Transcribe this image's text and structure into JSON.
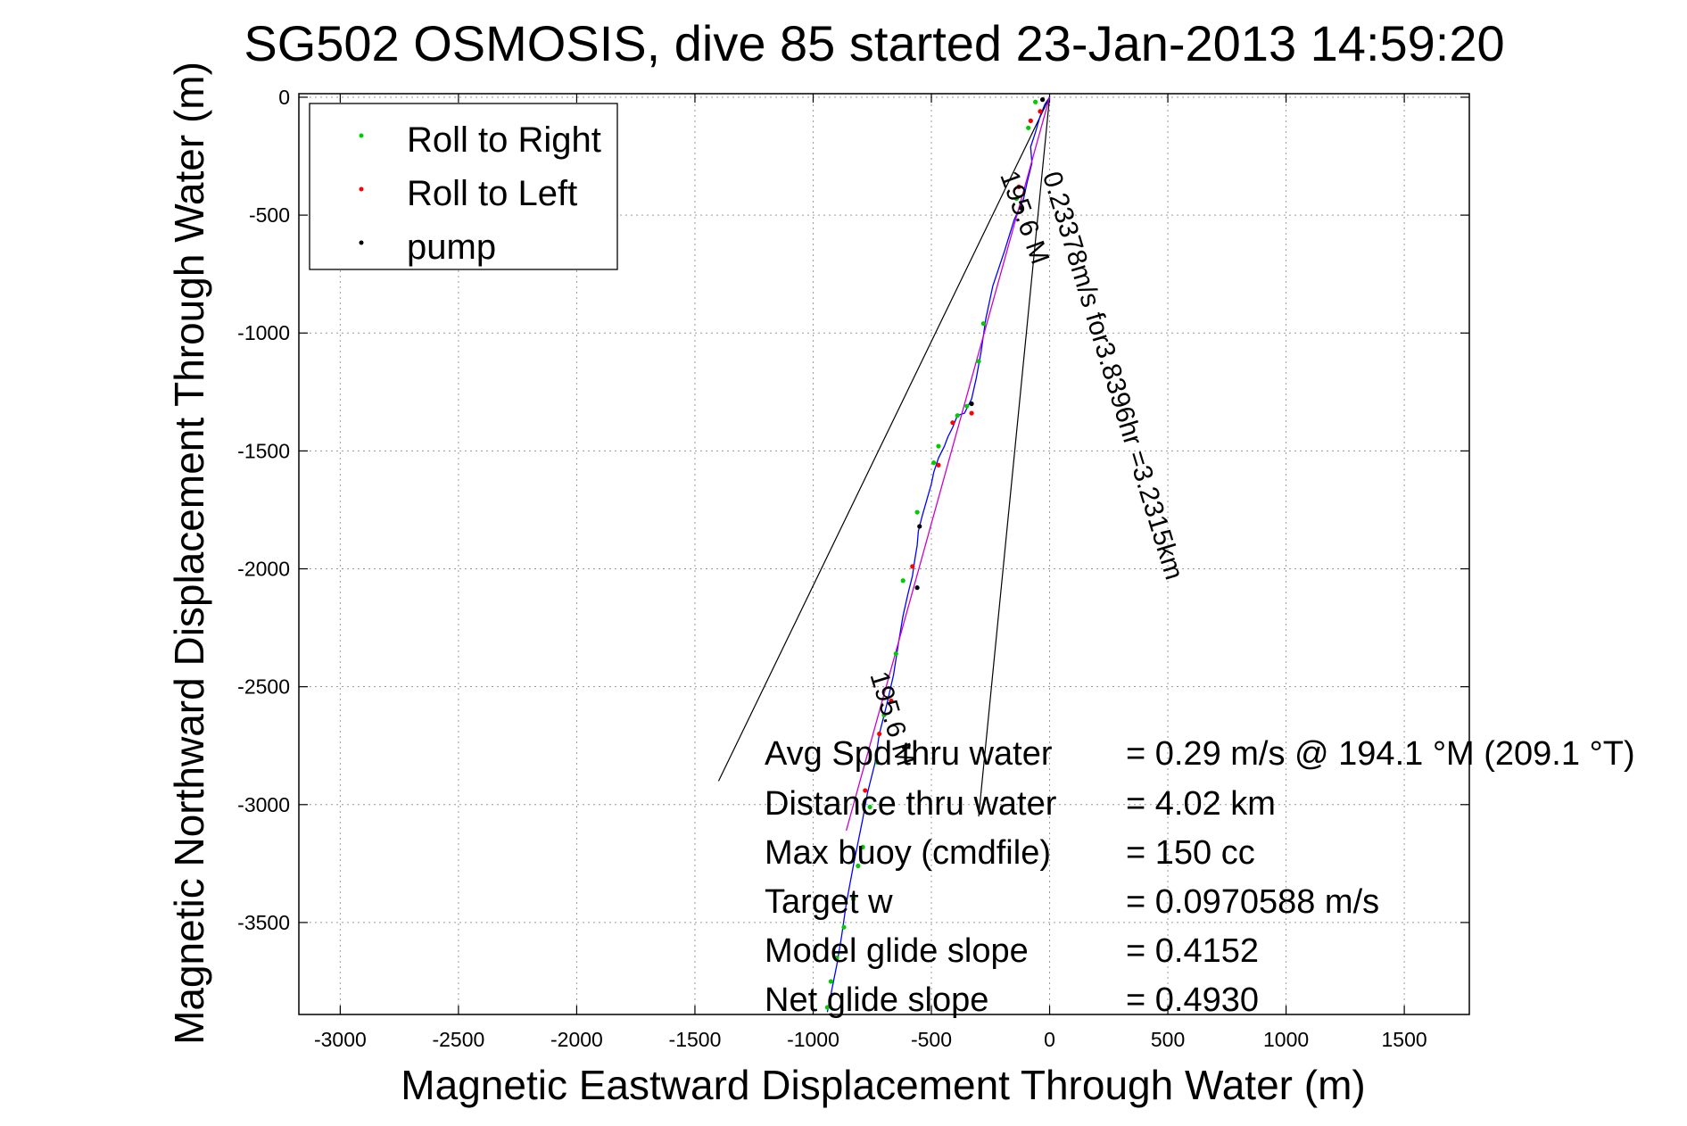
{
  "chart_data": {
    "type": "line",
    "title": "SG502 OSMOSIS, dive 85 started 23-Jan-2013 14:59:20",
    "xlabel": "Magnetic Eastward Displacement Through Water (m)",
    "ylabel": "Magnetic Northward Displacement Through Water (m)",
    "xlim": [
      -3175,
      1775
    ],
    "ylim": [
      -3890,
      15
    ],
    "xticks": [
      -3000,
      -2500,
      -2000,
      -1500,
      -1000,
      -500,
      0,
      500,
      1000,
      1500
    ],
    "yticks": [
      0,
      -500,
      -1000,
      -1500,
      -2000,
      -2500,
      -3000,
      -3500
    ],
    "grid": true,
    "legend_position": "top-left",
    "legend": [
      {
        "label": "Roll to Right",
        "color": "#00cc00"
      },
      {
        "label": "Roll to Left",
        "color": "#ff0000"
      },
      {
        "label": "pump",
        "color": "#000000"
      }
    ],
    "series": [
      {
        "color": "#0000ff",
        "x": [
          0,
          -20,
          -40,
          -60,
          -80,
          -75,
          -95,
          -110,
          -150,
          -190,
          -240,
          -270,
          -290,
          -310,
          -330,
          -360,
          -390,
          -410,
          -430,
          -445,
          -470,
          -490,
          -500,
          -520,
          -540,
          -555,
          -560,
          -570,
          -580,
          -600,
          -620,
          -640,
          -660,
          -690,
          -720,
          -740,
          -770,
          -790,
          -810,
          -830,
          -860,
          -880,
          -900,
          -920,
          -940
        ],
        "y": [
          0,
          -30,
          -80,
          -150,
          -210,
          -280,
          -360,
          -430,
          -520,
          -650,
          -800,
          -940,
          -1080,
          -1190,
          -1280,
          -1340,
          -1350,
          -1400,
          -1440,
          -1480,
          -1530,
          -1590,
          -1640,
          -1710,
          -1780,
          -1840,
          -1900,
          -1960,
          -2030,
          -2110,
          -2200,
          -2320,
          -2450,
          -2580,
          -2700,
          -2830,
          -2950,
          -3060,
          -3160,
          -3260,
          -3420,
          -3560,
          -3680,
          -3780,
          -3880
        ]
      },
      {
        "color": "#cc00cc",
        "x": [
          0,
          -860
        ],
        "y": [
          0,
          -3110
        ]
      }
    ],
    "roll_right_points": {
      "x": [
        -60,
        -90,
        -140,
        -280,
        -300,
        -350,
        -390,
        -470,
        -490,
        -560,
        -620,
        -650,
        -700,
        -730,
        -760,
        -790,
        -810,
        -830,
        -870,
        -900,
        -925,
        -940
      ],
      "y": [
        -20,
        -130,
        -430,
        -960,
        -1120,
        -1310,
        -1350,
        -1480,
        -1550,
        -1760,
        -2050,
        -2360,
        -2620,
        -2820,
        -3010,
        -3180,
        -3260,
        -3400,
        -3520,
        -3650,
        -3750,
        -3860
      ]
    },
    "roll_left_points": {
      "x": [
        -40,
        -80,
        -130,
        -330,
        -410,
        -470,
        -580,
        -670,
        -720,
        -780
      ],
      "y": [
        -60,
        -100,
        -380,
        -1340,
        -1380,
        -1560,
        -1990,
        -2560,
        -2700,
        -2940
      ]
    },
    "pump_points": {
      "x": [
        -30,
        -120,
        -330,
        -550,
        -560
      ],
      "y": [
        -10,
        -470,
        -1300,
        -1820,
        -2080
      ]
    },
    "reference_lines": [
      {
        "x": [
          0,
          -1400
        ],
        "y": [
          0,
          -2900
        ]
      },
      {
        "x": [
          0,
          -300
        ],
        "y": [
          0,
          -3050
        ]
      }
    ],
    "annotations": [
      {
        "text": "0.23378m/s for3.8396hr =3.2315km",
        "x": -30,
        "y": -330,
        "rotation": 73
      },
      {
        "text": "195.6 M",
        "x": -210,
        "y": -330,
        "rotation": 70
      },
      {
        "text": "195.6 M",
        "x": -760,
        "y": -2450,
        "rotation": 73
      }
    ],
    "stats": [
      {
        "label": "Avg Spd thru water",
        "value": "=  0.29 m/s @ 194.1 °M (209.1 °T)"
      },
      {
        "label": "Distance thru water",
        "value": "=  4.02 km"
      },
      {
        "label": "Max buoy (cmdfile)",
        "value": "= 150 cc"
      },
      {
        "label": "Target w",
        "value": "= 0.0970588 m/s"
      },
      {
        "label": "Model glide slope",
        "value": "= 0.4152"
      },
      {
        "label": "Net glide slope",
        "value": "= 0.4930"
      }
    ]
  }
}
